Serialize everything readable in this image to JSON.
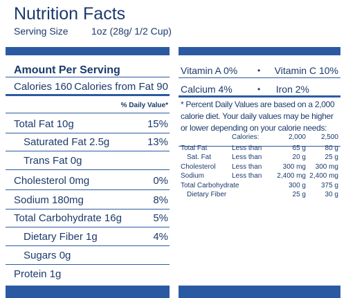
{
  "header": {
    "title": "Nutrition Facts",
    "serving_size_label": "Serving Size",
    "serving_size": "1oz (28g/ 1/2 Cup)"
  },
  "left_panel": {
    "heading": "Amount Per Serving",
    "calories": "Calories 160",
    "calories_from_fat": "Calories from Fat 90",
    "daily_value_header": "% Daily Value*",
    "rows": [
      {
        "label": "Total Fat 10g",
        "dv": "15%"
      },
      {
        "label": "Saturated Fat 2.5g",
        "dv": "13%"
      },
      {
        "label": "Trans Fat 0g"
      },
      {
        "label": "Cholesterol 0mg",
        "dv": "0%"
      },
      {
        "label": "Sodium 180mg",
        "dv": "8%"
      },
      {
        "label": "Total Carbohydrate 16g",
        "dv": "5%"
      },
      {
        "label": "Dietary Fiber 1g",
        "dv": "4%"
      },
      {
        "label": "Sugars 0g"
      },
      {
        "label": "Protein 1g"
      }
    ]
  },
  "right_panel": {
    "vitamins": [
      [
        "Vitamin A 0%",
        "Vitamin C 10%"
      ],
      [
        "Calcium 4%",
        "Iron 2%"
      ]
    ],
    "separator": "•",
    "footnote": "* Percent Daily Values are based on a 2,000 calorie diet. Your daily values may be higher or lower depending on your calorie needs:",
    "dv_table": {
      "header": [
        "Calories:",
        "2,000",
        "2,500"
      ],
      "rows": [
        [
          "Total Fat",
          "Less than",
          "65 g",
          "80 g"
        ],
        [
          "Sat. Fat",
          "Less than",
          "20 g",
          "25 g"
        ],
        [
          "Cholesterol",
          "Less than",
          "300 mg",
          "300 mg"
        ],
        [
          "Sodium",
          "Less than",
          "2,400 mg",
          "2,400 mg"
        ],
        [
          "Total Carbohydrate",
          "300 g",
          "375 g"
        ],
        [
          "Dietary Fiber",
          "25 g",
          "30 g"
        ]
      ]
    }
  }
}
